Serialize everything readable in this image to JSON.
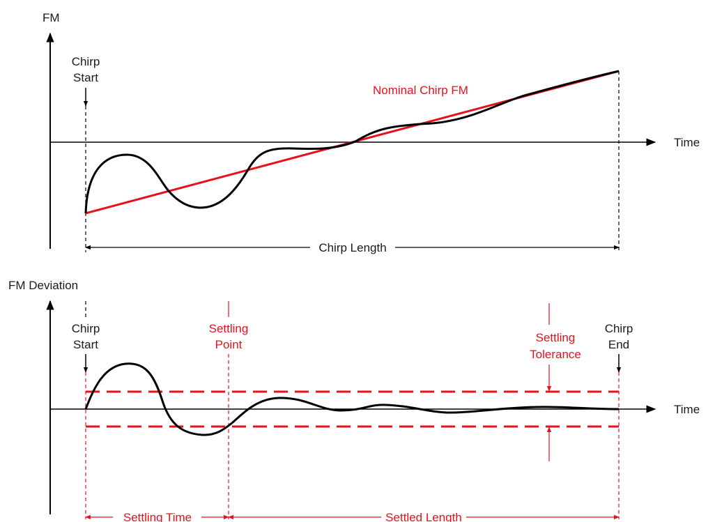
{
  "colors": {
    "axis": "#000000",
    "curve": "#000000",
    "nominal": "#e8101a",
    "annotation": "#e8101a"
  },
  "top_plot": {
    "y_axis_label": "FM",
    "x_axis_label": "Time",
    "chirp_start": {
      "line1": "Chirp",
      "line2": "Start"
    },
    "nominal_label": "Nominal Chirp FM",
    "length_label": "Chirp Length"
  },
  "bottom_plot": {
    "y_axis_label": "FM Deviation",
    "x_axis_label": "Time",
    "chirp_start": {
      "line1": "Chirp",
      "line2": "Start"
    },
    "settling_point": {
      "line1": "Settling",
      "line2": "Point"
    },
    "settling_tolerance": {
      "line1": "Settling",
      "line2": "Tolerance"
    },
    "chirp_end": {
      "line1": "Chirp",
      "line2": "End"
    },
    "settling_time_label": "Settling Time",
    "settled_length_label": "Settled Length"
  }
}
